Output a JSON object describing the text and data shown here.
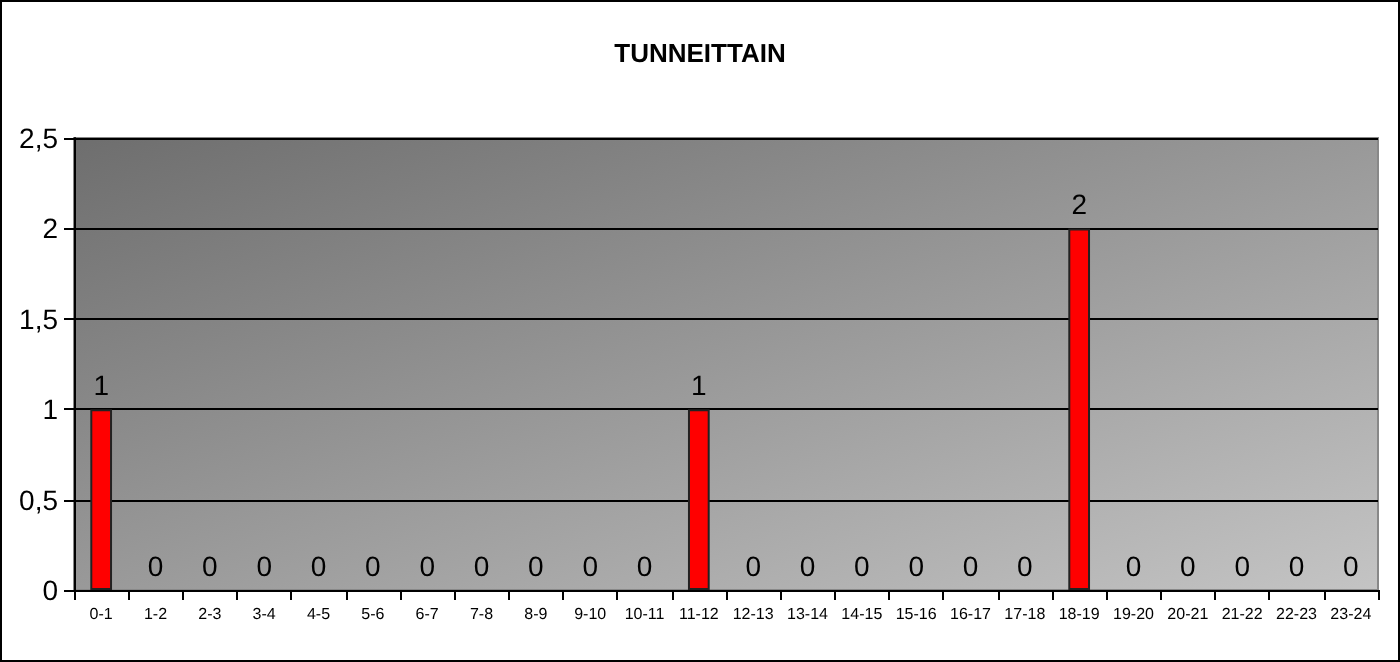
{
  "chart_data": {
    "type": "bar",
    "title": "TUNNEITTAIN",
    "categories": [
      "0-1",
      "1-2",
      "2-3",
      "3-4",
      "4-5",
      "5-6",
      "6-7",
      "7-8",
      "8-9",
      "9-10",
      "10-11",
      "11-12",
      "12-13",
      "13-14",
      "14-15",
      "15-16",
      "16-17",
      "17-18",
      "18-19",
      "19-20",
      "20-21",
      "21-22",
      "22-23",
      "23-24"
    ],
    "values": [
      1,
      0,
      0,
      0,
      0,
      0,
      0,
      0,
      0,
      0,
      0,
      1,
      0,
      0,
      0,
      0,
      0,
      0,
      2,
      0,
      0,
      0,
      0,
      0
    ],
    "color": "#ff0000",
    "ylim": [
      0,
      2.5
    ],
    "yticks": [
      0,
      {
        "value": 0.5,
        "label": "0,5"
      },
      1,
      {
        "value": 1.5,
        "label": "1,5"
      },
      2,
      {
        "value": 2.5,
        "label": "2,5"
      }
    ],
    "grid": "y",
    "data_labels": true
  }
}
